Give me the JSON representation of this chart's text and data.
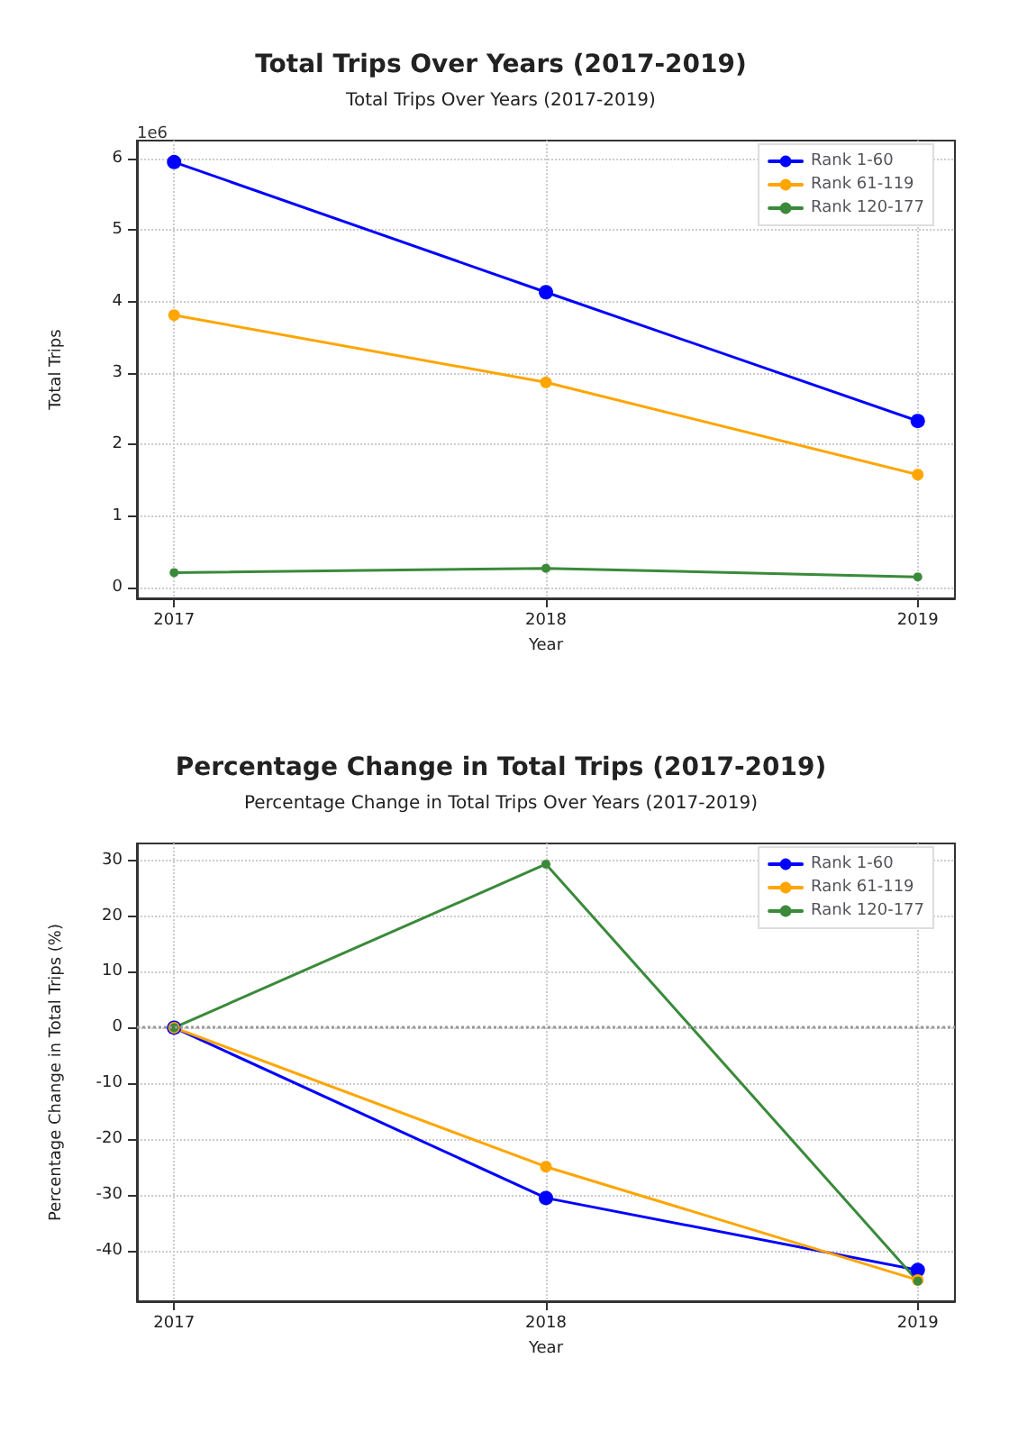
{
  "chart_data": [
    {
      "type": "line",
      "title": "Total Trips Over Years (2017-2019)",
      "subtitle": "Total Trips Over Years (2017-2019)",
      "xlabel": "Year",
      "ylabel": "Total Trips",
      "annotations": [
        "1e6"
      ],
      "x": [
        2017,
        2018,
        2019
      ],
      "xlim": [
        2016.9,
        2019.1
      ],
      "xticks": [
        2017,
        2018,
        2019
      ],
      "ylim": [
        -0.15,
        6.25
      ],
      "yticks": [
        0,
        1,
        2,
        3,
        4,
        5,
        6
      ],
      "series": [
        {
          "name": "Rank 1-60",
          "color": "#0000ff",
          "values": [
            5.95,
            4.13,
            2.33
          ]
        },
        {
          "name": "Rank 61-119",
          "color": "#ffa500",
          "values": [
            3.81,
            2.87,
            1.58
          ]
        },
        {
          "name": "Rank 120-177",
          "color": "#3a8a3a",
          "values": [
            0.21,
            0.27,
            0.15
          ]
        }
      ],
      "grid": true,
      "legend": "top right",
      "marker": "circle",
      "line_style": "solid"
    },
    {
      "type": "line",
      "title": "Percentage Change in Total Trips (2017-2019)",
      "subtitle": "Percentage Change in Total Trips Over Years (2017-2019)",
      "xlabel": "Year",
      "ylabel": "Percentage Change in Total Trips (%)",
      "x": [
        2017,
        2018,
        2019
      ],
      "xlim": [
        2016.9,
        2019.1
      ],
      "xticks": [
        2017,
        2018,
        2019
      ],
      "ylim": [
        -49,
        33
      ],
      "yticks": [
        -40,
        -30,
        -20,
        -10,
        0,
        10,
        20,
        30
      ],
      "series": [
        {
          "name": "Rank 1-60",
          "color": "#0000ff",
          "values": [
            0,
            -30.5,
            -43.4
          ]
        },
        {
          "name": "Rank 61-119",
          "color": "#ffa500",
          "values": [
            0,
            -24.9,
            -45.2
          ]
        },
        {
          "name": "Rank 120-177",
          "color": "#3a8a3a",
          "values": [
            0,
            29.3,
            -45.4
          ]
        }
      ],
      "ref_lines": [
        {
          "axis": "y",
          "value": 0,
          "label": null,
          "color": "#999999",
          "line_style": "dotted"
        }
      ],
      "grid": true,
      "legend": "top right",
      "marker": "circle",
      "line_style": "solid"
    }
  ]
}
